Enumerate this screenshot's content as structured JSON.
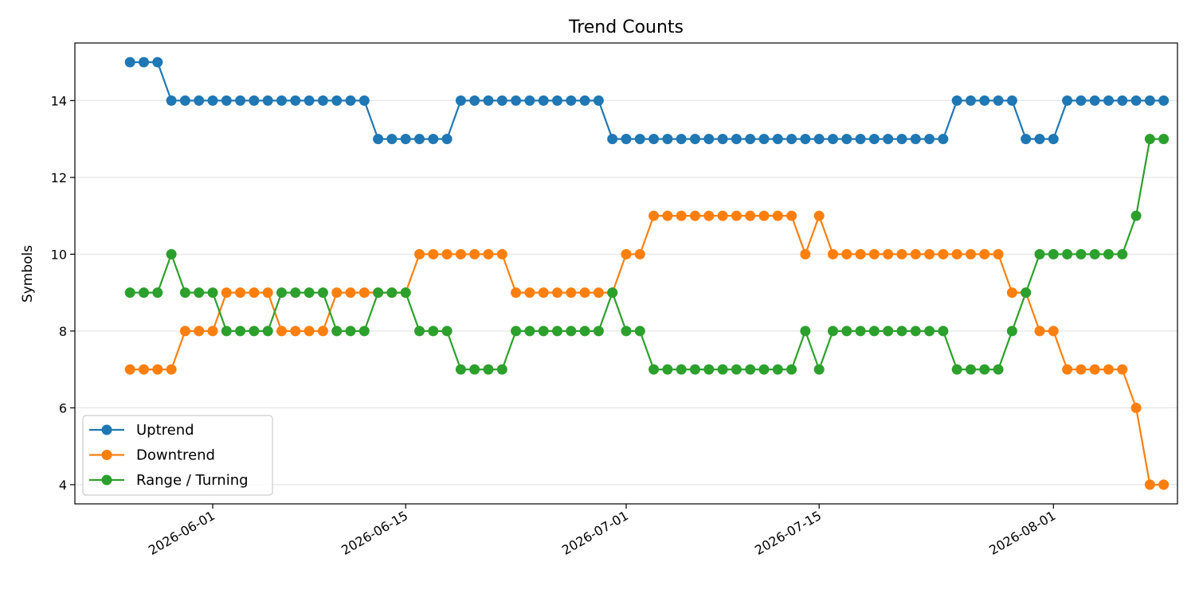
{
  "chart_data": {
    "type": "line",
    "title": "Trend Counts",
    "xlabel": "",
    "ylabel": "Symbols",
    "x_start": "2026-05-26",
    "x_end": "2026-08-06",
    "xlim": [
      "2026-05-22",
      "2026-08-10"
    ],
    "ylim": [
      3.5,
      15.5
    ],
    "x_ticks": [
      "2026-06-01",
      "2026-06-15",
      "2026-07-01",
      "2026-07-15",
      "2026-08-01"
    ],
    "y_ticks": [
      4,
      6,
      8,
      10,
      12,
      14
    ],
    "grid": "y",
    "legend_position": "lower-left",
    "series": [
      {
        "name": "Uptrend",
        "color": "#1f77b4",
        "values": [
          15,
          15,
          15,
          14,
          14,
          14,
          14,
          14,
          14,
          14,
          14,
          14,
          14,
          14,
          14,
          14,
          14,
          14,
          13,
          13,
          13,
          13,
          13,
          13,
          14,
          14,
          14,
          14,
          14,
          14,
          14,
          14,
          14,
          14,
          14,
          13,
          13,
          13,
          13,
          13,
          13,
          13,
          13,
          13,
          13,
          13,
          13,
          13,
          13,
          13,
          13,
          13,
          13,
          13,
          13,
          13,
          13,
          13,
          13,
          13,
          14,
          14,
          14,
          14,
          14,
          13,
          13,
          13,
          14,
          14,
          14,
          14,
          14,
          14,
          14,
          14
        ]
      },
      {
        "name": "Downtrend",
        "color": "#ff7f0e",
        "values": [
          7,
          7,
          7,
          7,
          8,
          8,
          8,
          9,
          9,
          9,
          9,
          8,
          8,
          8,
          8,
          9,
          9,
          9,
          9,
          9,
          9,
          10,
          10,
          10,
          10,
          10,
          10,
          10,
          9,
          9,
          9,
          9,
          9,
          9,
          9,
          9,
          10,
          10,
          11,
          11,
          11,
          11,
          11,
          11,
          11,
          11,
          11,
          11,
          11,
          10,
          11,
          10,
          10,
          10,
          10,
          10,
          10,
          10,
          10,
          10,
          10,
          10,
          10,
          10,
          9,
          9,
          8,
          8,
          7,
          7,
          7,
          7,
          7,
          6,
          4,
          4
        ]
      },
      {
        "name": "Range / Turning",
        "color": "#2ca02c",
        "values": [
          9,
          9,
          9,
          10,
          9,
          9,
          9,
          8,
          8,
          8,
          8,
          9,
          9,
          9,
          9,
          8,
          8,
          8,
          9,
          9,
          9,
          8,
          8,
          8,
          7,
          7,
          7,
          7,
          8,
          8,
          8,
          8,
          8,
          8,
          8,
          9,
          8,
          8,
          7,
          7,
          7,
          7,
          7,
          7,
          7,
          7,
          7,
          7,
          7,
          8,
          7,
          8,
          8,
          8,
          8,
          8,
          8,
          8,
          8,
          8,
          7,
          7,
          7,
          7,
          8,
          9,
          10,
          10,
          10,
          10,
          10,
          10,
          10,
          11,
          13,
          13
        ]
      }
    ]
  }
}
